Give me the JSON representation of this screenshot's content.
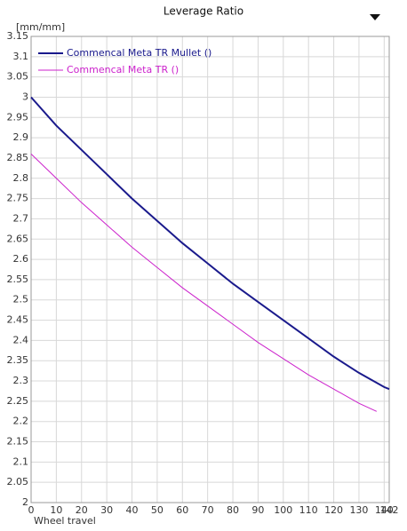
{
  "chart_data": {
    "type": "line",
    "title": "Leverage Ratio",
    "y_label": "[mm/mm]",
    "x_label": "Wheel travel",
    "xlim": [
      0,
      142
    ],
    "xticks": [
      0,
      10,
      20,
      30,
      40,
      50,
      60,
      70,
      80,
      90,
      100,
      110,
      120,
      130,
      140,
      142
    ],
    "ylim": [
      2,
      3.15
    ],
    "yticks": [
      2,
      2.05,
      2.1,
      2.15,
      2.2,
      2.25,
      2.3,
      2.35,
      2.4,
      2.45,
      2.5,
      2.55,
      2.6,
      2.65,
      2.7,
      2.75,
      2.8,
      2.85,
      2.9,
      2.95,
      3,
      3.05,
      3.1,
      3.15
    ],
    "grid": true,
    "legend": "upper left",
    "series": [
      {
        "name": "Commencal Meta TR Mullet ()",
        "color": "#1a1a8c",
        "width": 2,
        "x": [
          0,
          10,
          20,
          30,
          40,
          50,
          60,
          70,
          80,
          90,
          100,
          110,
          120,
          130,
          140,
          142
        ],
        "values": [
          3.0,
          2.93,
          2.87,
          2.81,
          2.75,
          2.695,
          2.64,
          2.59,
          2.54,
          2.495,
          2.45,
          2.405,
          2.36,
          2.32,
          2.285,
          2.28
        ]
      },
      {
        "name": "Commencal Meta TR ()",
        "color": "#cc22cc",
        "width": 1,
        "x": [
          0,
          10,
          20,
          30,
          40,
          50,
          60,
          70,
          80,
          90,
          100,
          110,
          120,
          130,
          137
        ],
        "values": [
          2.86,
          2.8,
          2.74,
          2.685,
          2.63,
          2.58,
          2.53,
          2.485,
          2.44,
          2.395,
          2.355,
          2.315,
          2.28,
          2.245,
          2.225
        ]
      }
    ]
  }
}
